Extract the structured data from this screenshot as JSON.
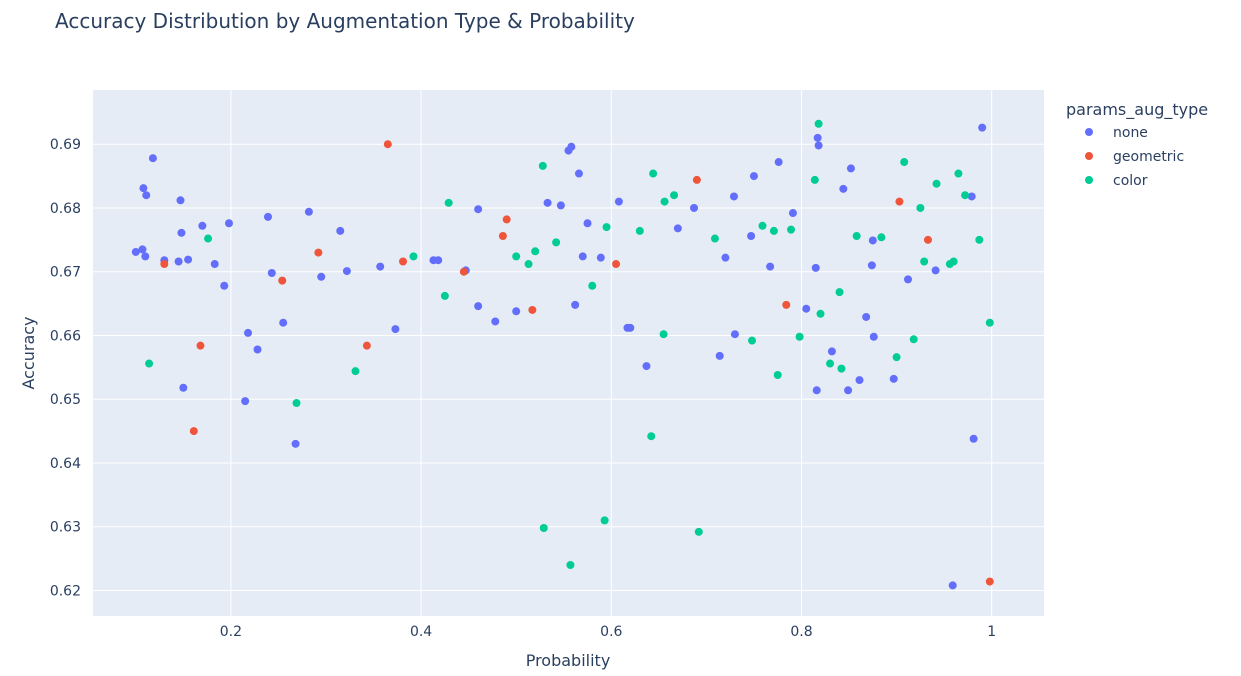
{
  "chart_data": {
    "type": "scatter",
    "title": "Accuracy Distribution by Augmentation Type & Probability",
    "xlabel": "Probability",
    "ylabel": "Accuracy",
    "xlim": [
      0.055,
      1.055
    ],
    "ylim": [
      0.616,
      0.6985
    ],
    "xticks": [
      0.2,
      0.4,
      0.6,
      0.8,
      1
    ],
    "xtick_labels": [
      "0.2",
      "0.4",
      "0.6",
      "0.8",
      "1"
    ],
    "yticks": [
      0.62,
      0.63,
      0.64,
      0.65,
      0.66,
      0.67,
      0.68,
      0.69
    ],
    "ytick_labels": [
      "0.62",
      "0.63",
      "0.64",
      "0.65",
      "0.66",
      "0.67",
      "0.68",
      "0.69"
    ],
    "grid": true,
    "plot_background": "#e5ecf6",
    "grid_color": "#ffffff",
    "legend": {
      "title": "params_aug_type",
      "position": "right"
    },
    "series": [
      {
        "name": "none",
        "color": "#636efa",
        "points": [
          [
            0.1,
            0.6731
          ],
          [
            0.107,
            0.6735
          ],
          [
            0.108,
            0.6831
          ],
          [
            0.11,
            0.6724
          ],
          [
            0.111,
            0.682
          ],
          [
            0.118,
            0.6878
          ],
          [
            0.13,
            0.6718
          ],
          [
            0.145,
            0.6716
          ],
          [
            0.147,
            0.6812
          ],
          [
            0.148,
            0.6761
          ],
          [
            0.15,
            0.6518
          ],
          [
            0.155,
            0.6719
          ],
          [
            0.17,
            0.6772
          ],
          [
            0.183,
            0.6712
          ],
          [
            0.193,
            0.6678
          ],
          [
            0.198,
            0.6776
          ],
          [
            0.215,
            0.6497
          ],
          [
            0.218,
            0.6604
          ],
          [
            0.228,
            0.6578
          ],
          [
            0.239,
            0.6786
          ],
          [
            0.243,
            0.6698
          ],
          [
            0.255,
            0.662
          ],
          [
            0.268,
            0.643
          ],
          [
            0.282,
            0.6794
          ],
          [
            0.295,
            0.6692
          ],
          [
            0.315,
            0.6764
          ],
          [
            0.322,
            0.6701
          ],
          [
            0.357,
            0.6708
          ],
          [
            0.373,
            0.661
          ],
          [
            0.413,
            0.6718
          ],
          [
            0.418,
            0.6718
          ],
          [
            0.447,
            0.6702
          ],
          [
            0.46,
            0.6798
          ],
          [
            0.46,
            0.6646
          ],
          [
            0.478,
            0.6622
          ],
          [
            0.5,
            0.6638
          ],
          [
            0.533,
            0.6808
          ],
          [
            0.547,
            0.6804
          ],
          [
            0.555,
            0.689
          ],
          [
            0.558,
            0.6896
          ],
          [
            0.562,
            0.6648
          ],
          [
            0.566,
            0.6854
          ],
          [
            0.57,
            0.6724
          ],
          [
            0.575,
            0.6776
          ],
          [
            0.589,
            0.6722
          ],
          [
            0.608,
            0.681
          ],
          [
            0.617,
            0.6612
          ],
          [
            0.62,
            0.6612
          ],
          [
            0.637,
            0.6552
          ],
          [
            0.67,
            0.6768
          ],
          [
            0.687,
            0.68
          ],
          [
            0.714,
            0.6568
          ],
          [
            0.72,
            0.6722
          ],
          [
            0.729,
            0.6818
          ],
          [
            0.73,
            0.6602
          ],
          [
            0.747,
            0.6756
          ],
          [
            0.75,
            0.685
          ],
          [
            0.767,
            0.6708
          ],
          [
            0.776,
            0.6872
          ],
          [
            0.791,
            0.6792
          ],
          [
            0.805,
            0.6642
          ],
          [
            0.815,
            0.6706
          ],
          [
            0.816,
            0.6514
          ],
          [
            0.817,
            0.691
          ],
          [
            0.818,
            0.6898
          ],
          [
            0.832,
            0.6575
          ],
          [
            0.844,
            0.683
          ],
          [
            0.849,
            0.6514
          ],
          [
            0.852,
            0.6862
          ],
          [
            0.861,
            0.653
          ],
          [
            0.868,
            0.6629
          ],
          [
            0.874,
            0.671
          ],
          [
            0.875,
            0.6749
          ],
          [
            0.876,
            0.6598
          ],
          [
            0.897,
            0.6532
          ],
          [
            0.912,
            0.6688
          ],
          [
            0.941,
            0.6702
          ],
          [
            0.959,
            0.6208
          ],
          [
            0.979,
            0.6818
          ],
          [
            0.981,
            0.6438
          ],
          [
            0.99,
            0.6926
          ]
        ]
      },
      {
        "name": "geometric",
        "color": "#ef553b",
        "points": [
          [
            0.13,
            0.6712
          ],
          [
            0.161,
            0.645
          ],
          [
            0.168,
            0.6584
          ],
          [
            0.254,
            0.6686
          ],
          [
            0.292,
            0.673
          ],
          [
            0.343,
            0.6584
          ],
          [
            0.365,
            0.69
          ],
          [
            0.381,
            0.6716
          ],
          [
            0.445,
            0.67
          ],
          [
            0.486,
            0.6756
          ],
          [
            0.49,
            0.6782
          ],
          [
            0.517,
            0.664
          ],
          [
            0.605,
            0.6712
          ],
          [
            0.69,
            0.6844
          ],
          [
            0.784,
            0.6648
          ],
          [
            0.903,
            0.681
          ],
          [
            0.933,
            0.675
          ],
          [
            0.998,
            0.6214
          ]
        ]
      },
      {
        "name": "color",
        "color": "#00cc96",
        "points": [
          [
            0.114,
            0.6556
          ],
          [
            0.176,
            0.6752
          ],
          [
            0.269,
            0.6494
          ],
          [
            0.331,
            0.6544
          ],
          [
            0.392,
            0.6724
          ],
          [
            0.425,
            0.6662
          ],
          [
            0.429,
            0.6808
          ],
          [
            0.5,
            0.6724
          ],
          [
            0.513,
            0.6712
          ],
          [
            0.52,
            0.6732
          ],
          [
            0.528,
            0.6866
          ],
          [
            0.529,
            0.6298
          ],
          [
            0.542,
            0.6746
          ],
          [
            0.557,
            0.624
          ],
          [
            0.58,
            0.6678
          ],
          [
            0.593,
            0.631
          ],
          [
            0.595,
            0.677
          ],
          [
            0.63,
            0.6764
          ],
          [
            0.642,
            0.6442
          ],
          [
            0.644,
            0.6854
          ],
          [
            0.655,
            0.6602
          ],
          [
            0.656,
            0.681
          ],
          [
            0.666,
            0.682
          ],
          [
            0.692,
            0.6292
          ],
          [
            0.709,
            0.6752
          ],
          [
            0.748,
            0.6592
          ],
          [
            0.759,
            0.6772
          ],
          [
            0.771,
            0.6764
          ],
          [
            0.775,
            0.6538
          ],
          [
            0.789,
            0.6766
          ],
          [
            0.798,
            0.6598
          ],
          [
            0.814,
            0.6844
          ],
          [
            0.818,
            0.6932
          ],
          [
            0.82,
            0.6634
          ],
          [
            0.83,
            0.6556
          ],
          [
            0.84,
            0.6668
          ],
          [
            0.842,
            0.6548
          ],
          [
            0.858,
            0.6756
          ],
          [
            0.884,
            0.6754
          ],
          [
            0.9,
            0.6566
          ],
          [
            0.908,
            0.6872
          ],
          [
            0.918,
            0.6594
          ],
          [
            0.925,
            0.68
          ],
          [
            0.929,
            0.6716
          ],
          [
            0.942,
            0.6838
          ],
          [
            0.956,
            0.6712
          ],
          [
            0.96,
            0.6716
          ],
          [
            0.965,
            0.6854
          ],
          [
            0.972,
            0.682
          ],
          [
            0.987,
            0.675
          ],
          [
            0.998,
            0.662
          ]
        ]
      }
    ]
  }
}
